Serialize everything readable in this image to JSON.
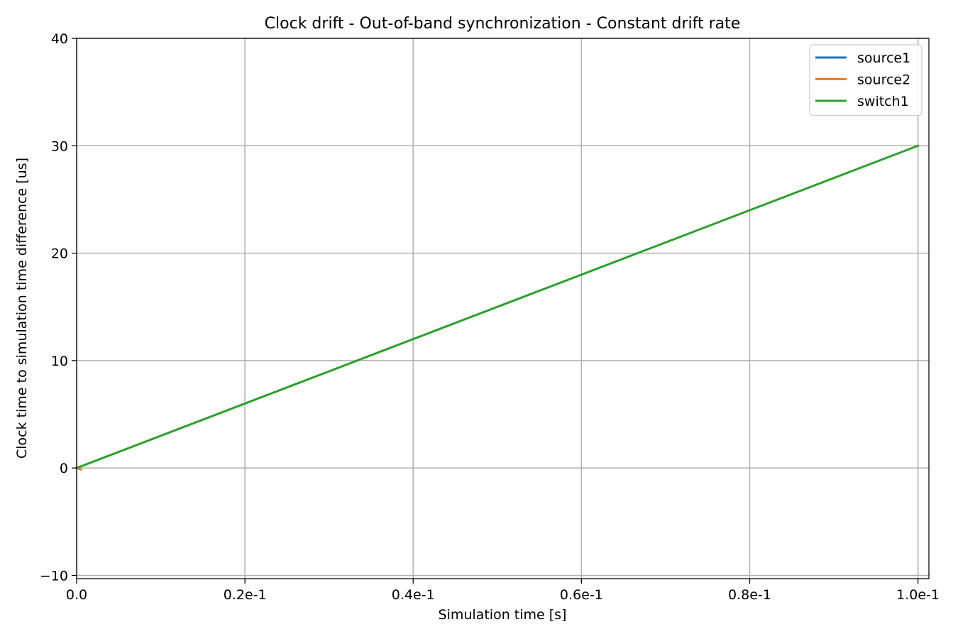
{
  "chart_data": {
    "type": "line",
    "title": "Clock drift - Out-of-band synchronization - Constant drift rate",
    "xlabel": "Simulation time [s]",
    "ylabel": "Clock time to simulation time difference [us]",
    "xlim": [
      0,
      0.1013
    ],
    "ylim": [
      -10.3,
      40
    ],
    "xticks": [
      0,
      0.02,
      0.04,
      0.06,
      0.08,
      0.1
    ],
    "xtick_labels": [
      "0.0",
      "0.2e-1",
      "0.4e-1",
      "0.6e-1",
      "0.8e-1",
      "1.0e-1"
    ],
    "yticks": [
      -10,
      0,
      10,
      20,
      30,
      40
    ],
    "ytick_labels": [
      "−10",
      "0",
      "10",
      "20",
      "30",
      "40"
    ],
    "grid": true,
    "legend_position": "top-right",
    "series": [
      {
        "name": "source1",
        "color": "#1f77b4",
        "x": [
          0,
          0.0005
        ],
        "y": [
          0,
          0.15
        ]
      },
      {
        "name": "source2",
        "color": "#ff7f0e",
        "x": [
          0,
          0.0005
        ],
        "y": [
          0,
          -0.15
        ]
      },
      {
        "name": "switch1",
        "color": "#2ca02c",
        "x": [
          0,
          0.1
        ],
        "y": [
          0,
          30
        ]
      }
    ]
  }
}
